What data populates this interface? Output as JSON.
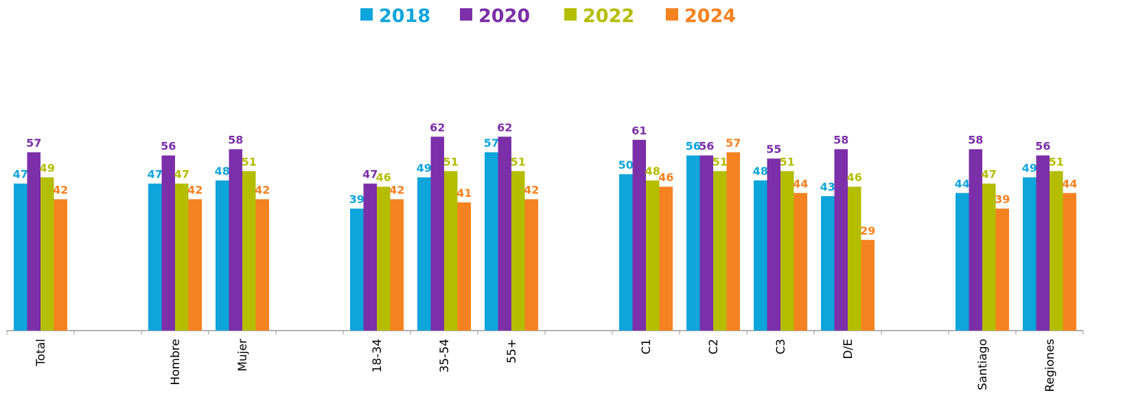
{
  "chart_data": {
    "type": "bar",
    "categories": [
      "Total",
      null,
      "Hombre",
      "Mujer",
      null,
      "18-34",
      "35-54",
      "55+",
      null,
      "C1",
      "C2",
      "C3",
      "D/E",
      null,
      "Santiago",
      "Regiones"
    ],
    "series": [
      {
        "name": "2018",
        "color": "#0ea5db",
        "values": [
          47,
          null,
          47,
          48,
          null,
          39,
          49,
          57,
          null,
          50,
          56,
          48,
          43,
          null,
          44,
          49
        ]
      },
      {
        "name": "2020",
        "color": "#7b2fa8",
        "values": [
          57,
          null,
          56,
          58,
          null,
          47,
          62,
          62,
          null,
          61,
          56,
          55,
          58,
          null,
          58,
          56
        ]
      },
      {
        "name": "2022",
        "color": "#b5bd00",
        "values": [
          49,
          null,
          47,
          51,
          null,
          46,
          51,
          51,
          null,
          48,
          51,
          51,
          46,
          null,
          47,
          51
        ]
      },
      {
        "name": "2024",
        "color": "#f58220",
        "values": [
          42,
          null,
          42,
          42,
          null,
          42,
          41,
          42,
          null,
          46,
          57,
          44,
          29,
          null,
          39,
          44
        ]
      }
    ],
    "ylim": [
      0,
      100
    ],
    "legend": "top"
  }
}
